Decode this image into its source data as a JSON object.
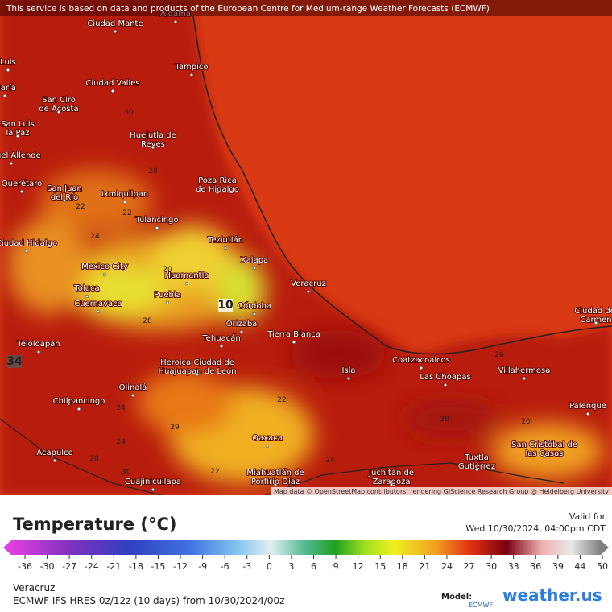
{
  "header": {
    "attribution": "This service is based on data and products of the European Centre for Medium-range Weather Forecasts (ECMWF)"
  },
  "map": {
    "labels": [
      "Aldama",
      "Ciudad Mante",
      "Tampico",
      "Luis",
      "María",
      "Ciudad Valles",
      "San Ciro de Acosta",
      "San Luis la Paz",
      "Huejutla de Reyes",
      "Miguel Allende",
      "Querétaro",
      "San Juan del Río",
      "Ixmiquilpan",
      "Poza Rica de Hidalgo",
      "Tulancingo",
      "Teziutlán",
      "Ciudad Hidalgo",
      "Xalapa",
      "Mexico City",
      "Huamantla",
      "Veracruz",
      "Toluca",
      "Puebla",
      "Cuernavaca",
      "Córdoba",
      "Orizaba",
      "Tierra Blanca",
      "Teloloapan",
      "Tehuacán",
      "Heroica Ciudad de Huajuapan de León",
      "Isla",
      "Coatzacoalcos",
      "Las Choapas",
      "Villahermosa",
      "Ciudad del Carmen",
      "Olinalá",
      "Chilpancingo",
      "Palenque",
      "Acapulco",
      "Oaxaca",
      "San Cristóbal de las Casas",
      "Tuxtla Gutiérrez",
      "Cuajinicuilapa",
      "Miahuatlán de Porfirio Díaz",
      "Juchitán de Zaragoza"
    ],
    "contour_labels": [
      22,
      22,
      24,
      20,
      10,
      28,
      24,
      29,
      34,
      22,
      24,
      22,
      24,
      28,
      26,
      20,
      28,
      30,
      30,
      28
    ],
    "credits": "Map data © OpenStreetMap contributors, rendering GIScience Research Group @ Heidelberg University"
  },
  "legend": {
    "title": "Temperature (°C)",
    "valid_label": "Valid for",
    "valid_time": "Wed 10/30/2024, 04:00pm CDT",
    "ticks": [
      -36,
      -30,
      -27,
      -24,
      -21,
      -18,
      -15,
      -12,
      -9,
      -6,
      -3,
      0,
      3,
      6,
      9,
      12,
      15,
      18,
      21,
      24,
      27,
      30,
      33,
      36,
      39,
      44,
      50
    ]
  },
  "footer": {
    "region": "Veracruz",
    "model_run": "ECMWF IFS HRES 0z/12z (10 days) from 10/30/2024/00z",
    "model_label": "Model:",
    "model_name": "ECMWF",
    "brand": "weather.us"
  }
}
